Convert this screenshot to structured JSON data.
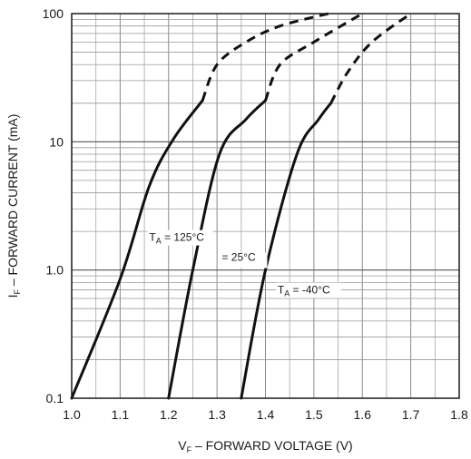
{
  "chart_data": {
    "type": "line",
    "title": "",
    "xlabel": {
      "main": "V",
      "sub": "F",
      "rest": " – FORWARD VOLTAGE (V)"
    },
    "ylabel": {
      "main": "I",
      "sub": "F",
      "rest": " – FORWARD CURRENT (mA)"
    },
    "xlim": [
      1.0,
      1.8
    ],
    "ylim": [
      0.1,
      100
    ],
    "yscale": "log",
    "grid": true,
    "x_ticks": [
      "1.0",
      "1.1",
      "1.2",
      "1.3",
      "1.4",
      "1.5",
      "1.6",
      "1.7",
      "1.8"
    ],
    "y_ticks": [
      "0.1",
      "1.0",
      "10",
      "100"
    ],
    "series": [
      {
        "label": {
          "main": "T",
          "sub": "A",
          "rest": " = 125°C"
        },
        "solid": [
          [
            1.0,
            0.1
          ],
          [
            1.1,
            0.85
          ],
          [
            1.16,
            4.5
          ],
          [
            1.21,
            10.5
          ],
          [
            1.27,
            21
          ]
        ],
        "dashed": [
          [
            1.27,
            21
          ],
          [
            1.3,
            40
          ],
          [
            1.36,
            60
          ],
          [
            1.43,
            80
          ],
          [
            1.53,
            100
          ]
        ]
      },
      {
        "label": {
          "main": "",
          "sub": "",
          "rest": "= 25°C"
        },
        "solid": [
          [
            1.2,
            0.1
          ],
          [
            1.25,
            1.0
          ],
          [
            1.305,
            8.0
          ],
          [
            1.36,
            15
          ],
          [
            1.4,
            21
          ]
        ],
        "dashed": [
          [
            1.4,
            21
          ],
          [
            1.43,
            40
          ],
          [
            1.5,
            60
          ],
          [
            1.6,
            100
          ]
        ]
      },
      {
        "label": {
          "main": "T",
          "sub": "A",
          "rest": " = -40°C"
        },
        "solid": [
          [
            1.35,
            0.1
          ],
          [
            1.4,
            1.0
          ],
          [
            1.465,
            8.0
          ],
          [
            1.51,
            15
          ],
          [
            1.535,
            20
          ]
        ],
        "dashed": [
          [
            1.535,
            20
          ],
          [
            1.57,
            35
          ],
          [
            1.62,
            60
          ],
          [
            1.7,
            100
          ]
        ]
      }
    ]
  }
}
